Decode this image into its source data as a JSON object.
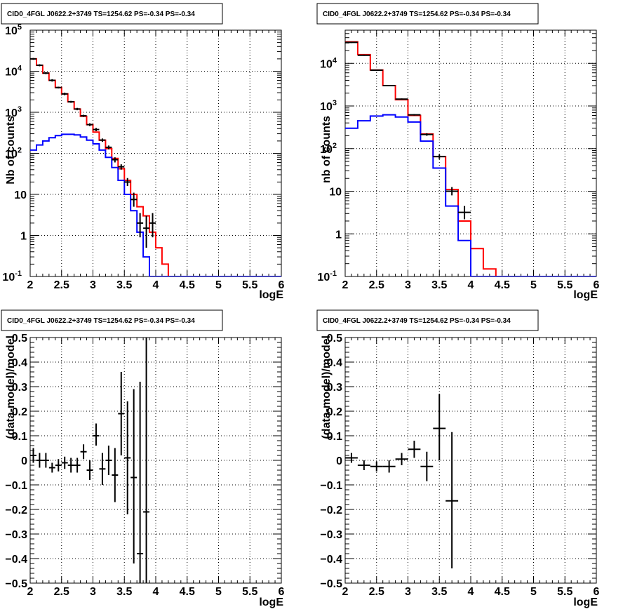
{
  "chart_data": [
    {
      "type": "line",
      "title": "CID0_4FGL J0622.2+3749 TS=1254.62 PS=-0.34 PS=-0.34",
      "xlabel": "logE",
      "ylabel": "Nb of counts",
      "xlim": [
        2,
        6
      ],
      "ylim": [
        0.1,
        100000
      ],
      "yscale": "log",
      "grid": true,
      "x_ticks": [
        "2",
        "2.5",
        "3",
        "3.5",
        "4",
        "4.5",
        "5",
        "5.5",
        "6"
      ],
      "y_ticks": [
        "10^-1",
        "1",
        "10",
        "10^2",
        "10^3",
        "10^4",
        "10^5"
      ],
      "series": [
        {
          "style": "step",
          "color": "#ff0000",
          "bin_edges": [
            2.0,
            2.1,
            2.2,
            2.3,
            2.4,
            2.5,
            2.6,
            2.7,
            2.8,
            2.9,
            3.0,
            3.1,
            3.2,
            3.3,
            3.4,
            3.5,
            3.6,
            3.7,
            3.8,
            3.9,
            4.0,
            4.1,
            4.2,
            4.3,
            4.4,
            4.5,
            4.6,
            4.7,
            4.8,
            4.9,
            5.0,
            5.1,
            5.2,
            5.3,
            5.4,
            5.5,
            5.6,
            5.7,
            5.8,
            5.9,
            6.0
          ],
          "values": [
            20000,
            14000,
            9000,
            6000,
            4000,
            2800,
            1800,
            1200,
            800,
            500,
            330,
            210,
            130,
            75,
            42,
            22,
            10,
            5,
            3,
            1.2,
            0.5,
            0.2,
            0.08,
            0.03,
            0.01,
            0.01,
            0.01,
            0.01,
            0.01,
            0.01,
            0.01,
            0.01,
            0.01,
            0.01,
            0.01,
            0.01,
            0.01,
            0.01,
            0.01,
            0.01
          ]
        },
        {
          "style": "step",
          "color": "#0000ff",
          "bin_edges": [
            2.0,
            2.1,
            2.2,
            2.3,
            2.4,
            2.5,
            2.6,
            2.7,
            2.8,
            2.9,
            3.0,
            3.1,
            3.2,
            3.3,
            3.4,
            3.5,
            3.6,
            3.7,
            3.8,
            3.9,
            4.0,
            4.1,
            4.2,
            4.3,
            4.4,
            4.5,
            4.6,
            4.7,
            4.8,
            4.9,
            5.0,
            5.1,
            5.2,
            5.3,
            5.4,
            5.5,
            5.6,
            5.7,
            5.8,
            5.9,
            6.0
          ],
          "values": [
            120,
            160,
            200,
            240,
            270,
            290,
            290,
            280,
            250,
            210,
            170,
            120,
            80,
            45,
            22,
            10,
            4,
            1.2,
            0.3,
            0.05,
            0.01,
            0.01,
            0.01,
            0.01,
            0.01,
            0.01,
            0.01,
            0.01,
            0.01,
            0.01,
            0.01,
            0.01,
            0.01,
            0.01,
            0.01,
            0.01,
            0.01,
            0.01,
            0.01,
            0.01
          ]
        },
        {
          "style": "points",
          "color": "#000000",
          "x": [
            2.05,
            2.15,
            2.25,
            2.35,
            2.45,
            2.55,
            2.65,
            2.75,
            2.85,
            2.95,
            3.05,
            3.15,
            3.25,
            3.35,
            3.45,
            3.55,
            3.65,
            3.75,
            3.85,
            3.95
          ],
          "xerr": 0.05,
          "y": [
            20000,
            14000,
            9000,
            6000,
            4000,
            2800,
            1800,
            1200,
            820,
            500,
            380,
            210,
            140,
            70,
            47,
            20,
            7.5,
            2,
            1.5,
            2
          ],
          "ylow": [
            19000,
            13200,
            8500,
            5600,
            3800,
            2600,
            1700,
            1120,
            770,
            460,
            345,
            190,
            125,
            60,
            40,
            16,
            5,
            0.9,
            0.5,
            0.9
          ],
          "yhigh": [
            21000,
            14800,
            9500,
            6400,
            4200,
            3000,
            1900,
            1280,
            870,
            540,
            415,
            230,
            155,
            80,
            54,
            25,
            11,
            3.5,
            3,
            3.5
          ]
        }
      ]
    },
    {
      "type": "line",
      "title": "CID0_4FGL J0622.2+3749 TS=1254.62 PS=-0.34 PS=-0.34",
      "xlabel": "logE",
      "ylabel": "nb of counts",
      "xlim": [
        2,
        6
      ],
      "ylim": [
        0.1,
        60000
      ],
      "yscale": "log",
      "grid": true,
      "x_ticks": [
        "2",
        "2.5",
        "3",
        "3.5",
        "4",
        "4.5",
        "5",
        "5.5",
        "6"
      ],
      "y_ticks": [
        "10^-1",
        "1",
        "10",
        "10^2",
        "10^3",
        "10^4"
      ],
      "series": [
        {
          "style": "step",
          "color": "#ff0000",
          "bin_edges": [
            2.0,
            2.2,
            2.4,
            2.6,
            2.8,
            3.0,
            3.2,
            3.4,
            3.6,
            3.8,
            4.0,
            4.2,
            4.4,
            4.6,
            4.8,
            5.0,
            5.2,
            5.4,
            5.6,
            5.8,
            6.0
          ],
          "values": [
            32000,
            16000,
            7000,
            3000,
            1400,
            600,
            220,
            65,
            11,
            2,
            0.45,
            0.15,
            0.05,
            0.02,
            0.01,
            0.01,
            0.01,
            0.01,
            0.01,
            0.01
          ]
        },
        {
          "style": "step",
          "color": "#0000ff",
          "bin_edges": [
            2.0,
            2.2,
            2.4,
            2.6,
            2.8,
            3.0,
            3.2,
            3.4,
            3.6,
            3.8,
            4.0,
            4.2,
            4.4,
            4.6,
            4.8,
            5.0,
            5.2,
            5.4,
            5.6,
            5.8,
            6.0
          ],
          "values": [
            300,
            450,
            580,
            620,
            550,
            420,
            150,
            35,
            4.5,
            0.7,
            0.08,
            0.01,
            0.01,
            0.01,
            0.01,
            0.01,
            0.01,
            0.01,
            0.01,
            0.01
          ]
        },
        {
          "style": "points",
          "color": "#000000",
          "x": [
            2.1,
            2.3,
            2.5,
            2.7,
            2.9,
            3.1,
            3.3,
            3.5,
            3.7,
            3.9
          ],
          "xerr": 0.1,
          "y": [
            31000,
            15500,
            6900,
            3000,
            1450,
            620,
            215,
            65,
            10,
            3.2
          ],
          "ylow": [
            30000,
            15000,
            6700,
            2900,
            1400,
            595,
            200,
            57,
            8,
            2.2
          ],
          "yhigh": [
            32000,
            16000,
            7100,
            3100,
            1500,
            645,
            230,
            73,
            12.5,
            4.5
          ]
        }
      ]
    },
    {
      "type": "scatter",
      "title": "CID0_4FGL J0622.2+3749 TS=1254.62 PS=-0.34 PS=-0.34",
      "xlabel": "logE",
      "ylabel": "(data-model)/model",
      "xlim": [
        2,
        6
      ],
      "ylim": [
        -0.5,
        0.5
      ],
      "grid": true,
      "x_ticks": [
        "2",
        "2.5",
        "3",
        "3.5",
        "4",
        "4.5",
        "5",
        "5.5",
        "6"
      ],
      "y_ticks": [
        "-0.5",
        "-0.4",
        "-0.3",
        "-0.2",
        "-0.1",
        "0",
        "0.1",
        "0.2",
        "0.3",
        "0.4",
        "0.5"
      ],
      "series": [
        {
          "style": "points",
          "color": "#000000",
          "xerr": 0.05,
          "x": [
            2.05,
            2.15,
            2.25,
            2.35,
            2.45,
            2.55,
            2.65,
            2.75,
            2.85,
            2.95,
            3.05,
            3.15,
            3.25,
            3.35,
            3.45,
            3.55,
            3.65,
            3.75,
            3.85
          ],
          "y": [
            0.02,
            0.0,
            0.0,
            -0.03,
            -0.02,
            -0.01,
            -0.02,
            -0.02,
            0.035,
            -0.04,
            0.1,
            -0.035,
            0.0,
            -0.06,
            0.19,
            0.01,
            -0.07,
            -0.38,
            -0.21
          ],
          "ylow": [
            -0.01,
            -0.03,
            -0.03,
            -0.05,
            -0.045,
            -0.035,
            -0.05,
            -0.05,
            0.005,
            -0.08,
            0.06,
            -0.1,
            -0.06,
            -0.17,
            0.02,
            -0.22,
            -0.42,
            -0.5,
            -0.5
          ],
          "yhigh": [
            0.05,
            0.03,
            0.03,
            -0.01,
            0.005,
            0.015,
            0.01,
            0.01,
            0.065,
            0.0,
            0.15,
            0.03,
            0.06,
            0.05,
            0.36,
            0.24,
            0.29,
            0.32,
            0.5
          ]
        }
      ]
    },
    {
      "type": "scatter",
      "title": "CID0_4FGL J0622.2+3749 TS=1254.62 PS=-0.34 PS=-0.34",
      "xlabel": "logE",
      "ylabel": "(data-model)/model",
      "xlim": [
        2,
        6
      ],
      "ylim": [
        -0.5,
        0.5
      ],
      "grid": true,
      "x_ticks": [
        "2",
        "2.5",
        "3",
        "3.5",
        "4",
        "4.5",
        "5",
        "5.5",
        "6"
      ],
      "y_ticks": [
        "-0.5",
        "-0.4",
        "-0.3",
        "-0.2",
        "-0.1",
        "0",
        "0.1",
        "0.2",
        "0.3",
        "0.4",
        "0.5"
      ],
      "series": [
        {
          "style": "points",
          "color": "#000000",
          "xerr": 0.1,
          "x": [
            2.1,
            2.3,
            2.5,
            2.7,
            2.9,
            3.1,
            3.3,
            3.5,
            3.7
          ],
          "y": [
            0.01,
            -0.02,
            -0.025,
            -0.025,
            0.005,
            0.045,
            -0.025,
            0.13,
            -0.165
          ],
          "ylow": [
            -0.01,
            -0.04,
            -0.045,
            -0.05,
            -0.02,
            0.01,
            -0.085,
            0.0,
            -0.44
          ],
          "yhigh": [
            0.03,
            0.0,
            -0.005,
            0.0,
            0.03,
            0.08,
            0.035,
            0.27,
            0.115
          ]
        }
      ]
    }
  ]
}
